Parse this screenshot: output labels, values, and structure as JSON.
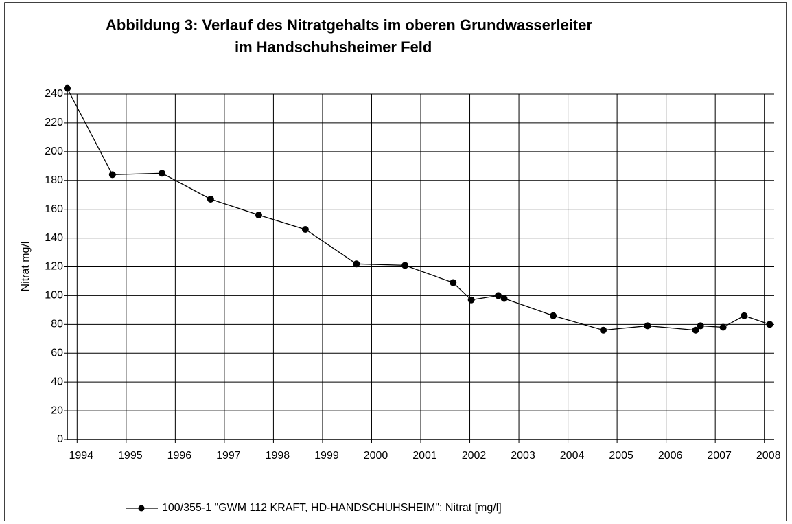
{
  "chart_data": {
    "type": "line",
    "title": [
      "Abbildung 3: Verlauf des Nitratgehalts im oberen Grundwasserleiter",
      "im Handschuhsheimer Feld"
    ],
    "y_label": "Nitrat mg/l",
    "x": [
      1993.8,
      1994.72,
      1995.73,
      1996.72,
      1997.7,
      1998.65,
      1999.69,
      2000.68,
      2001.66,
      2002.03,
      2002.58,
      2002.7,
      2003.7,
      2004.72,
      2005.62,
      2006.6,
      2006.7,
      2007.16,
      2007.59,
      2008.11
    ],
    "series": [
      {
        "name": "100/355-1 \"GWM 112 KRAFT, HD-HANDSCHUHSHEIM\": Nitrat [mg/l]",
        "color": "#000000",
        "values": [
          244,
          184,
          185,
          167,
          156,
          146,
          122,
          121,
          109,
          97,
          100,
          98,
          86,
          76,
          79,
          76,
          79,
          78,
          86,
          80
        ]
      }
    ],
    "xlim": [
      1993.8,
      2008.2
    ],
    "xticks": [
      1994,
      1995,
      1996,
      1997,
      1998,
      1999,
      2000,
      2001,
      2002,
      2003,
      2004,
      2005,
      2006,
      2007,
      2008
    ],
    "ylim": [
      0,
      240
    ],
    "yticks": [
      0,
      20,
      40,
      60,
      80,
      100,
      120,
      140,
      160,
      180,
      200,
      220,
      240
    ],
    "grid": true,
    "legend": "bottom"
  }
}
